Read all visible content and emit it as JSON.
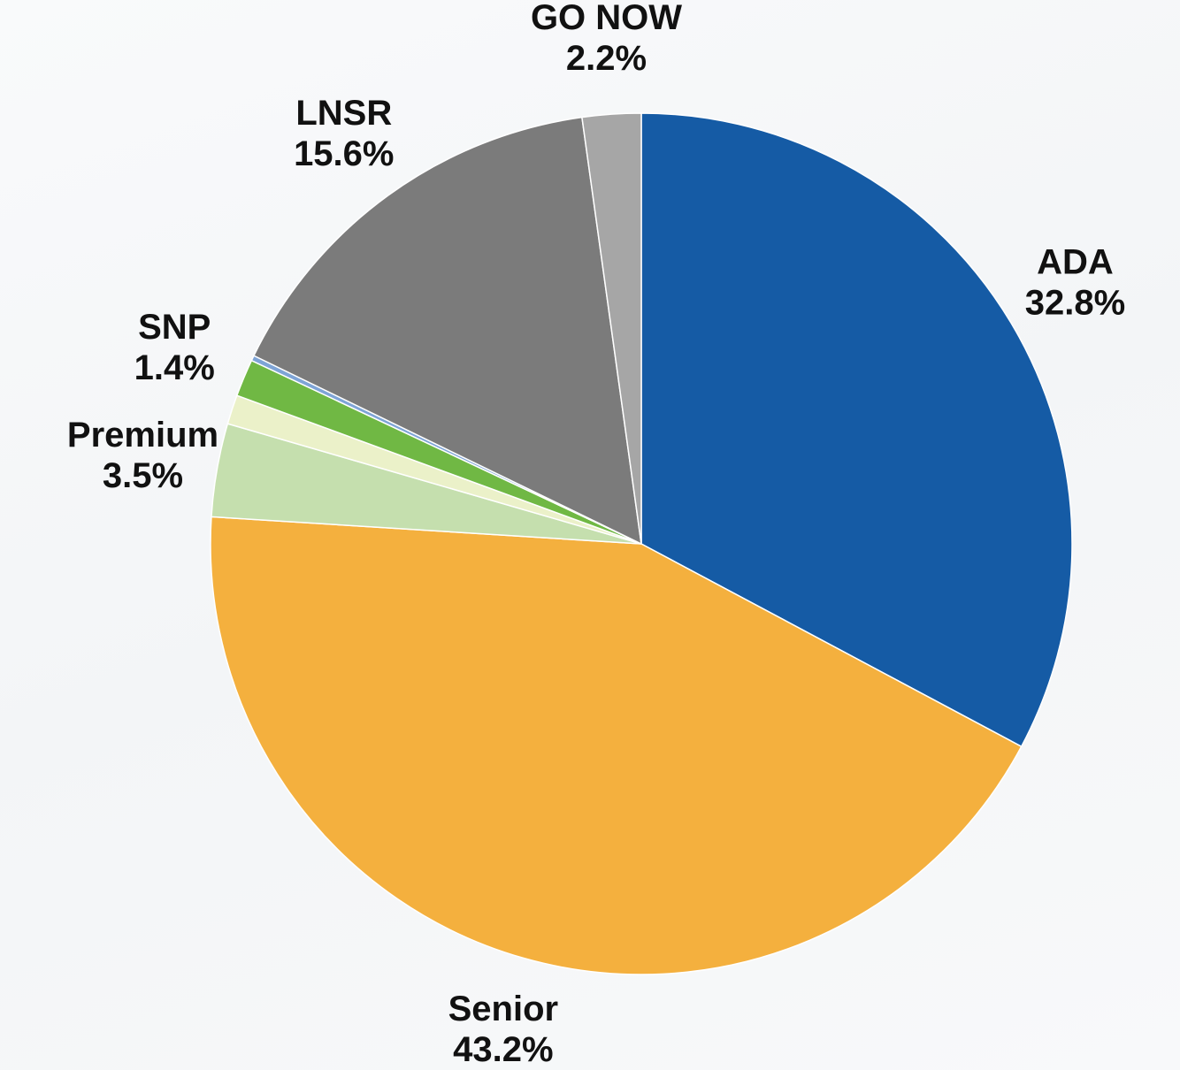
{
  "chart_data": {
    "type": "pie",
    "categories": [
      "ADA",
      "Senior",
      "Premium",
      null,
      "SNP",
      null,
      "LNSR",
      "GO NOW"
    ],
    "values": [
      32.8,
      43.2,
      3.5,
      1.1,
      1.4,
      0.2,
      15.6,
      2.2
    ],
    "value_labels": [
      "32.8%",
      "43.2%",
      "3.5%",
      null,
      "1.4%",
      null,
      "15.6%",
      "2.2%"
    ],
    "colors": [
      "#155ba5",
      "#f4b03e",
      "#c5dfae",
      "#ebf1c9",
      "#70b844",
      "#7ea4d6",
      "#7b7b7b",
      "#a6a6a6"
    ]
  }
}
